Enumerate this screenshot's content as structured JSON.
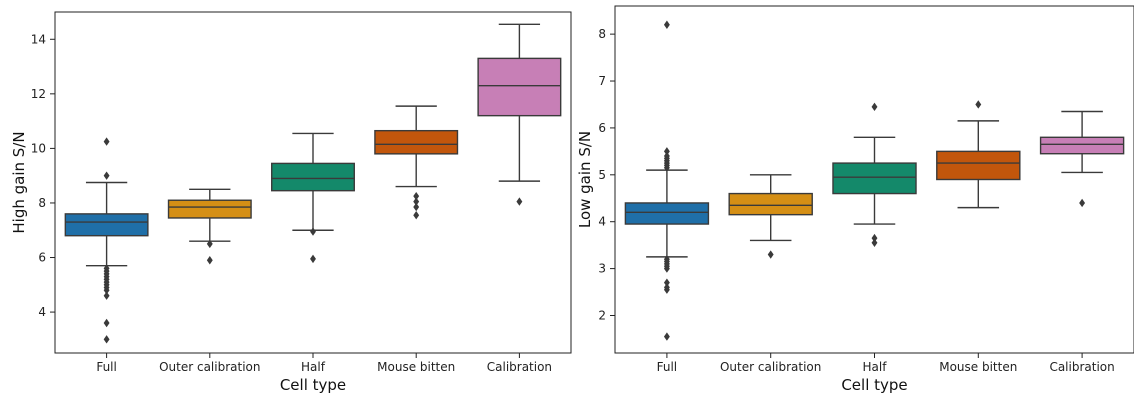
{
  "chart_data": [
    {
      "type": "box",
      "xlabel": "Cell type",
      "ylabel": "High gain S/N",
      "ylim": [
        2.5,
        15.0
      ],
      "yticks": [
        4,
        6,
        8,
        10,
        12,
        14
      ],
      "grid": false,
      "categories": [
        "Full",
        "Outer calibration",
        "Half",
        "Mouse bitten",
        "Calibration"
      ],
      "colors": [
        "#1f6fa8",
        "#d58f15",
        "#14896a",
        "#c2560c",
        "#c77fb6"
      ],
      "boxes": [
        {
          "category": "Full",
          "whisker_low": 5.7,
          "q1": 6.8,
          "median": 7.3,
          "q3": 7.6,
          "whisker_high": 8.75,
          "outliers": [
            10.25,
            9.0,
            5.6,
            5.5,
            5.4,
            5.3,
            5.2,
            5.1,
            5.0,
            4.9,
            4.8,
            4.6,
            3.6,
            3.0
          ]
        },
        {
          "category": "Outer calibration",
          "whisker_low": 6.6,
          "q1": 7.45,
          "median": 7.85,
          "q3": 8.1,
          "whisker_high": 8.5,
          "outliers": [
            6.5,
            5.9
          ]
        },
        {
          "category": "Half",
          "whisker_low": 7.0,
          "q1": 8.45,
          "median": 8.9,
          "q3": 9.45,
          "whisker_high": 10.55,
          "outliers": [
            6.95,
            5.95
          ]
        },
        {
          "category": "Mouse bitten",
          "whisker_low": 8.6,
          "q1": 9.8,
          "median": 10.15,
          "q3": 10.65,
          "whisker_high": 11.55,
          "outliers": [
            8.25,
            8.05,
            7.85,
            7.55
          ]
        },
        {
          "category": "Calibration",
          "whisker_low": 8.8,
          "q1": 11.2,
          "median": 12.3,
          "q3": 13.3,
          "whisker_high": 14.55,
          "outliers": [
            8.05
          ]
        }
      ]
    },
    {
      "type": "box",
      "xlabel": "Cell type",
      "ylabel": "Low gain S/N",
      "ylim": [
        1.2,
        8.6
      ],
      "yticks": [
        2,
        3,
        4,
        5,
        6,
        7,
        8
      ],
      "grid": false,
      "categories": [
        "Full",
        "Outer calibration",
        "Half",
        "Mouse bitten",
        "Calibration"
      ],
      "colors": [
        "#1f6fa8",
        "#d58f15",
        "#14896a",
        "#c2560c",
        "#c77fb6"
      ],
      "boxes": [
        {
          "category": "Full",
          "whisker_low": 3.25,
          "q1": 3.95,
          "median": 4.2,
          "q3": 4.4,
          "whisker_high": 5.1,
          "outliers": [
            8.2,
            5.5,
            5.4,
            5.35,
            5.3,
            5.25,
            5.2,
            5.15,
            3.2,
            3.15,
            3.1,
            3.05,
            3.0,
            2.7,
            2.6,
            2.55,
            1.55
          ]
        },
        {
          "category": "Outer calibration",
          "whisker_low": 3.6,
          "q1": 4.15,
          "median": 4.35,
          "q3": 4.6,
          "whisker_high": 5.0,
          "outliers": [
            3.3
          ]
        },
        {
          "category": "Half",
          "whisker_low": 3.95,
          "q1": 4.6,
          "median": 4.95,
          "q3": 5.25,
          "whisker_high": 5.8,
          "outliers": [
            6.45,
            3.65,
            3.55
          ]
        },
        {
          "category": "Mouse bitten",
          "whisker_low": 4.3,
          "q1": 4.9,
          "median": 5.25,
          "q3": 5.5,
          "whisker_high": 6.15,
          "outliers": [
            6.5
          ]
        },
        {
          "category": "Calibration",
          "whisker_low": 5.05,
          "q1": 5.45,
          "median": 5.65,
          "q3": 5.8,
          "whisker_high": 6.35,
          "outliers": [
            4.4
          ]
        }
      ]
    }
  ]
}
